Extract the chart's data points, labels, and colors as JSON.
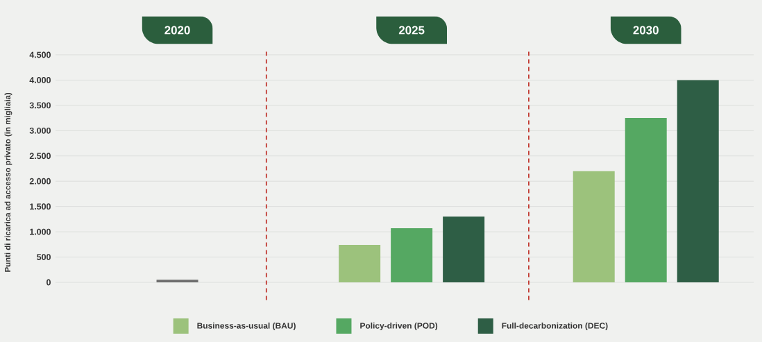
{
  "chart_data": {
    "type": "bar",
    "ylabel": "Punti di ricarica ad accesso privato (in migliaia)",
    "x": [
      2020,
      2025,
      2030
    ],
    "series": [
      {
        "name": "Business-as-usual (BAU)",
        "color": "#9cc27c",
        "values": [
          null,
          740,
          2200
        ]
      },
      {
        "name": "Policy-driven (POD)",
        "color": "#55a862",
        "values": [
          null,
          1070,
          3250
        ]
      },
      {
        "name": "Full-decarbonization (DEC)",
        "color": "#2e5e45",
        "values": [
          null,
          1300,
          4000
        ]
      },
      {
        "color": "#6e6e6e",
        "values": [
          50,
          null,
          null
        ]
      }
    ],
    "xlim": [
      2017.4,
      2032.3
    ],
    "xticks": [
      2020,
      2025,
      2030
    ],
    "ylim": [
      -350,
      4600
    ],
    "yticks": [
      0,
      500,
      {
        "value": 1000,
        "label": "1.000"
      },
      {
        "value": 1500,
        "label": "1.500"
      },
      {
        "value": 2000,
        "label": "2.000"
      },
      {
        "value": 2500,
        "label": "2.500"
      },
      {
        "value": 3000,
        "label": "3.000"
      },
      {
        "value": 3500,
        "label": "3.500"
      },
      {
        "value": 4000,
        "label": "4.000"
      },
      {
        "value": 4500,
        "label": "4.500"
      }
    ],
    "grid": "y",
    "legend": "bottom",
    "ref_lines": [
      {
        "axis": "x",
        "value": 2021.9,
        "color": "#c23b33",
        "line_style": "dashed"
      },
      {
        "axis": "x",
        "value": 2027.5,
        "color": "#c23b33",
        "line_style": "dashed"
      }
    ]
  }
}
